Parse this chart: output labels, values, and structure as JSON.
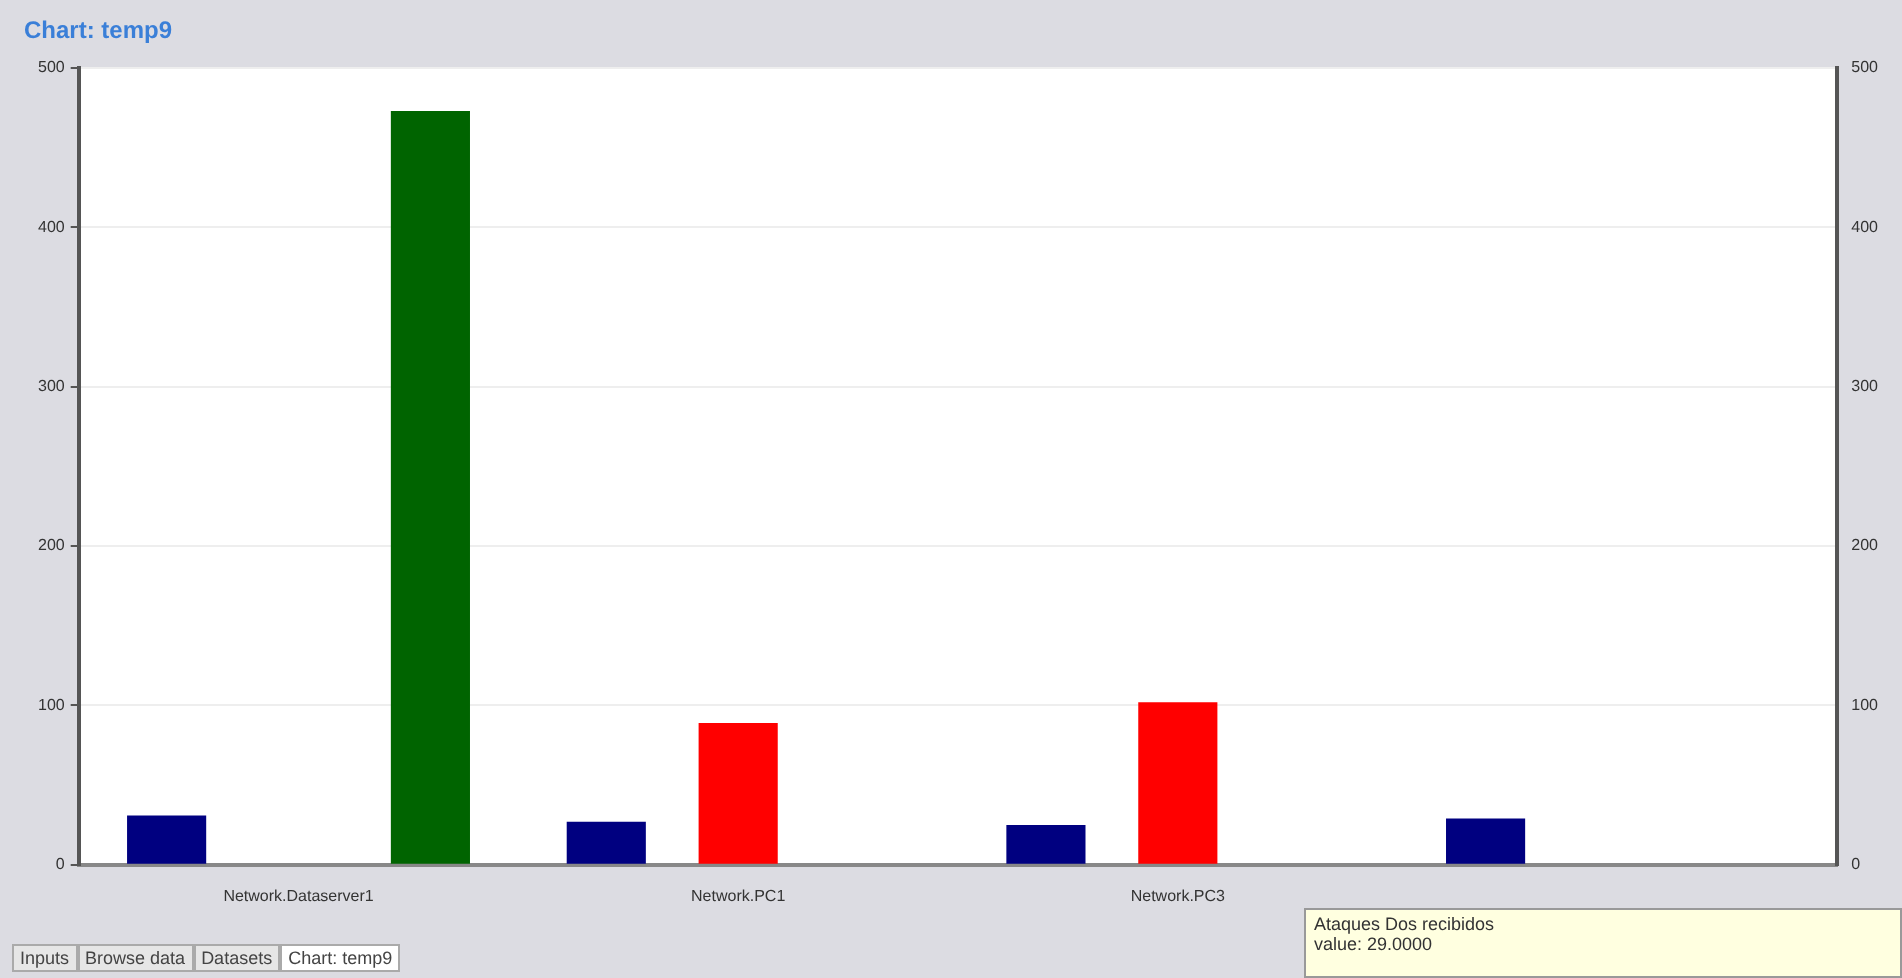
{
  "chart_data": {
    "type": "bar",
    "title": "Chart: temp9",
    "categories": [
      "Network.Dataserver1",
      "Network.PC1",
      "Network.PC3",
      null
    ],
    "series": [
      {
        "color": "#000080",
        "values": [
          31,
          27,
          25,
          29
        ]
      },
      {
        "color": "#ff0000",
        "values": [
          null,
          89,
          102,
          null
        ]
      },
      {
        "color": "#006400",
        "values": [
          473,
          null,
          null,
          null
        ]
      }
    ],
    "ylim": [
      0,
      500
    ],
    "yticks": [
      0,
      100,
      200,
      300,
      400,
      500
    ],
    "y2lim": [
      0,
      500
    ],
    "y2ticks": [
      0,
      100,
      200,
      300,
      400,
      500
    ],
    "grid": "y",
    "legend": false,
    "annotations": [
      "Ataques Dos recibidos\nvalue: 29.0000",
      "Inputs",
      "Browse data",
      "Datasets",
      "Chart: temp9"
    ]
  }
}
